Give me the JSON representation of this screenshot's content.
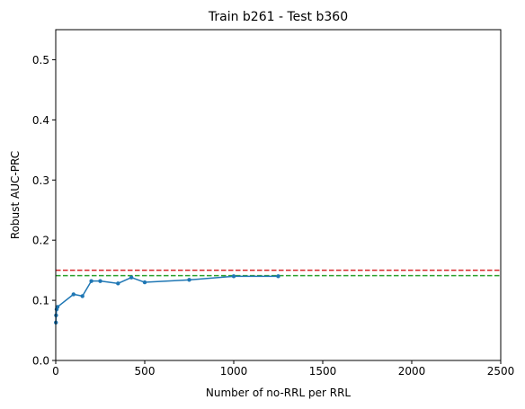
{
  "chart_data": {
    "type": "line",
    "title": "Train b261 - Test b360",
    "xlabel": "Number of no-RRL per RRL",
    "ylabel": "Robust AUC-PRC",
    "xlim": [
      0,
      2500
    ],
    "ylim": [
      0,
      0.55
    ],
    "xticks": [
      0,
      500,
      1000,
      1500,
      2000,
      2500
    ],
    "yticks": [
      0.0,
      0.1,
      0.2,
      0.3,
      0.4,
      0.5
    ],
    "xtick_labels": [
      "0",
      "500",
      "1000",
      "1500",
      "2000",
      "2500"
    ],
    "ytick_labels": [
      "0.0",
      "0.1",
      "0.2",
      "0.3",
      "0.4",
      "0.5"
    ],
    "grid": false,
    "legend": null,
    "series": [
      {
        "color": "#1f77b4",
        "style": "solid",
        "marker": "circle",
        "x": [
          1,
          2,
          5,
          10,
          100,
          150,
          200,
          250,
          350,
          425,
          500,
          750,
          1000,
          1250
        ],
        "y": [
          0.063,
          0.075,
          0.085,
          0.089,
          0.11,
          0.107,
          0.132,
          0.132,
          0.128,
          0.138,
          0.13,
          0.134,
          0.14,
          0.14
        ]
      }
    ],
    "reference_lines": [
      {
        "y": 0.15,
        "color": "#d62728",
        "style": "dashed"
      },
      {
        "y": 0.141,
        "color": "#2ca02c",
        "style": "dashed"
      }
    ]
  }
}
